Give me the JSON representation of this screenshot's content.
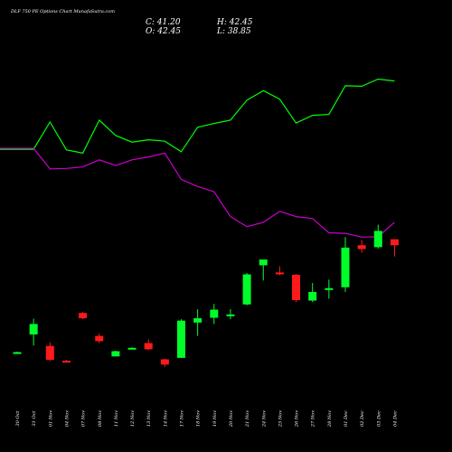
{
  "header": {
    "title": "DLF 750  PE Options  Chart MunafaSutra.com",
    "close_label": "C: 41.20",
    "open_label": "O: 42.45",
    "high_label": "H: 42.45",
    "low_label": "L: 38.85"
  },
  "colors": {
    "background": "#000000",
    "up": "#00ff2a",
    "down": "#ff1a1a",
    "line_upper": "#00ff00",
    "line_lower": "#cc00cc",
    "text": "#ffffff"
  },
  "chart_data": {
    "type": "candlestick",
    "categories": [
      "30 Oct",
      "31 Oct",
      "01 Nov",
      "04 Nov",
      "07 Nov",
      "08 Nov",
      "11 Nov",
      "12 Nov",
      "13 Nov",
      "14 Nov",
      "17 Nov",
      "18 Nov",
      "19 Nov",
      "20 Nov",
      "21 Nov",
      "24 Nov",
      "25 Nov",
      "26 Nov",
      "27 Nov",
      "28 Nov",
      "01 Dec",
      "02 Dec",
      "03 Dec",
      "04 Dec"
    ],
    "candles": [
      {
        "open": 18.7,
        "high": 18.9,
        "low": 18.5,
        "close": 18.8
      },
      {
        "open": 22.5,
        "high": 25.8,
        "low": 20.2,
        "close": 24.7
      },
      {
        "open": 20.1,
        "high": 20.9,
        "low": 16.9,
        "close": 17.2
      },
      {
        "open": 17.0,
        "high": 17.2,
        "low": 16.7,
        "close": 16.8
      },
      {
        "open": 27.0,
        "high": 27.2,
        "low": 25.7,
        "close": 25.9
      },
      {
        "open": 22.2,
        "high": 22.7,
        "low": 20.7,
        "close": 21.1
      },
      {
        "open": 17.9,
        "high": 19.1,
        "low": 17.9,
        "close": 19.0
      },
      {
        "open": 19.6,
        "high": 19.8,
        "low": 19.5,
        "close": 19.7
      },
      {
        "open": 20.7,
        "high": 21.5,
        "low": 19.2,
        "close": 19.4
      },
      {
        "open": 17.3,
        "high": 17.4,
        "low": 15.7,
        "close": 16.2
      },
      {
        "open": 17.6,
        "high": 25.7,
        "low": 17.6,
        "close": 25.4
      },
      {
        "open": 25.0,
        "high": 27.8,
        "low": 22.2,
        "close": 25.9
      },
      {
        "open": 26.0,
        "high": 28.9,
        "low": 24.7,
        "close": 27.7
      },
      {
        "open": 26.5,
        "high": 27.8,
        "low": 25.7,
        "close": 26.7
      },
      {
        "open": 28.8,
        "high": 35.4,
        "low": 28.6,
        "close": 35.1
      },
      {
        "open": 37.0,
        "high": 38.0,
        "low": 33.8,
        "close": 38.2
      },
      {
        "open": 35.5,
        "high": 36.8,
        "low": 34.9,
        "close": 35.1
      },
      {
        "open": 35.0,
        "high": 35.2,
        "low": 29.3,
        "close": 29.7
      },
      {
        "open": 29.6,
        "high": 33.3,
        "low": 29.3,
        "close": 31.4
      },
      {
        "open": 31.9,
        "high": 34.0,
        "low": 30.0,
        "close": 32.2
      },
      {
        "open": 32.4,
        "high": 42.9,
        "low": 31.4,
        "close": 40.7
      },
      {
        "open": 41.2,
        "high": 42.3,
        "low": 39.6,
        "close": 40.4
      },
      {
        "open": 40.8,
        "high": 45.5,
        "low": 40.5,
        "close": 44.2
      },
      {
        "open": 42.45,
        "high": 42.45,
        "low": 38.85,
        "close": 41.2
      }
    ],
    "series": [
      {
        "values": [
          61.3,
          61.3,
          67.0,
          61.2,
          60.5,
          67.4,
          64.2,
          62.8,
          63.3,
          63.0,
          60.8,
          65.9,
          66.7,
          67.4,
          71.6,
          73.6,
          71.8,
          66.8,
          68.4,
          68.6,
          74.6,
          74.5,
          76.0,
          75.6
        ]
      },
      {
        "values": [
          61.5,
          61.5,
          57.2,
          57.3,
          57.6,
          59.1,
          57.9,
          59.1,
          59.7,
          60.5,
          55.0,
          53.5,
          52.4,
          47.2,
          45.1,
          46.0,
          48.3,
          47.2,
          46.8,
          43.8,
          43.7,
          42.9,
          43.0,
          46.0
        ]
      }
    ],
    "ylim": [
      10,
      85
    ],
    "grid": false,
    "legend": "none"
  }
}
